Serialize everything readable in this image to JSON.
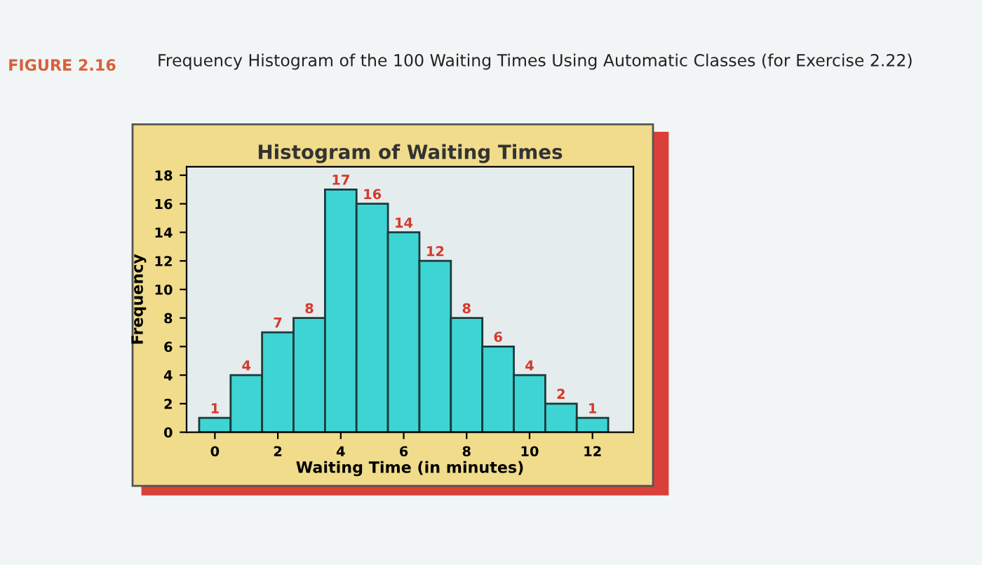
{
  "chart_data": {
    "type": "histogram",
    "title": "Histogram of Waiting Times",
    "xlabel": "Waiting Time (in minutes)",
    "ylabel": "Frequency",
    "annotations": [
      "FIGURE 2.16",
      "Frequency Histogram of the 100 Waiting Times Using Automatic Classes (for Exercise 2.22)"
    ],
    "bins": [
      -0.5,
      0.5,
      1.5,
      2.5,
      3.5,
      4.5,
      5.5,
      6.5,
      7.5,
      8.5,
      9.5,
      10.5,
      11.5,
      12.5
    ],
    "values": [
      1,
      4,
      7,
      8,
      17,
      16,
      14,
      12,
      8,
      6,
      4,
      2,
      1
    ],
    "color": "#3fd4d4",
    "data_labels": true,
    "xlim": [
      -0.9,
      13.3
    ],
    "ylim": [
      0,
      18.6
    ],
    "xticks": [
      0,
      2,
      4,
      6,
      8,
      10,
      12
    ],
    "yticks": [
      0,
      2,
      4,
      6,
      8,
      10,
      12,
      14,
      16,
      18
    ],
    "grid": false
  }
}
